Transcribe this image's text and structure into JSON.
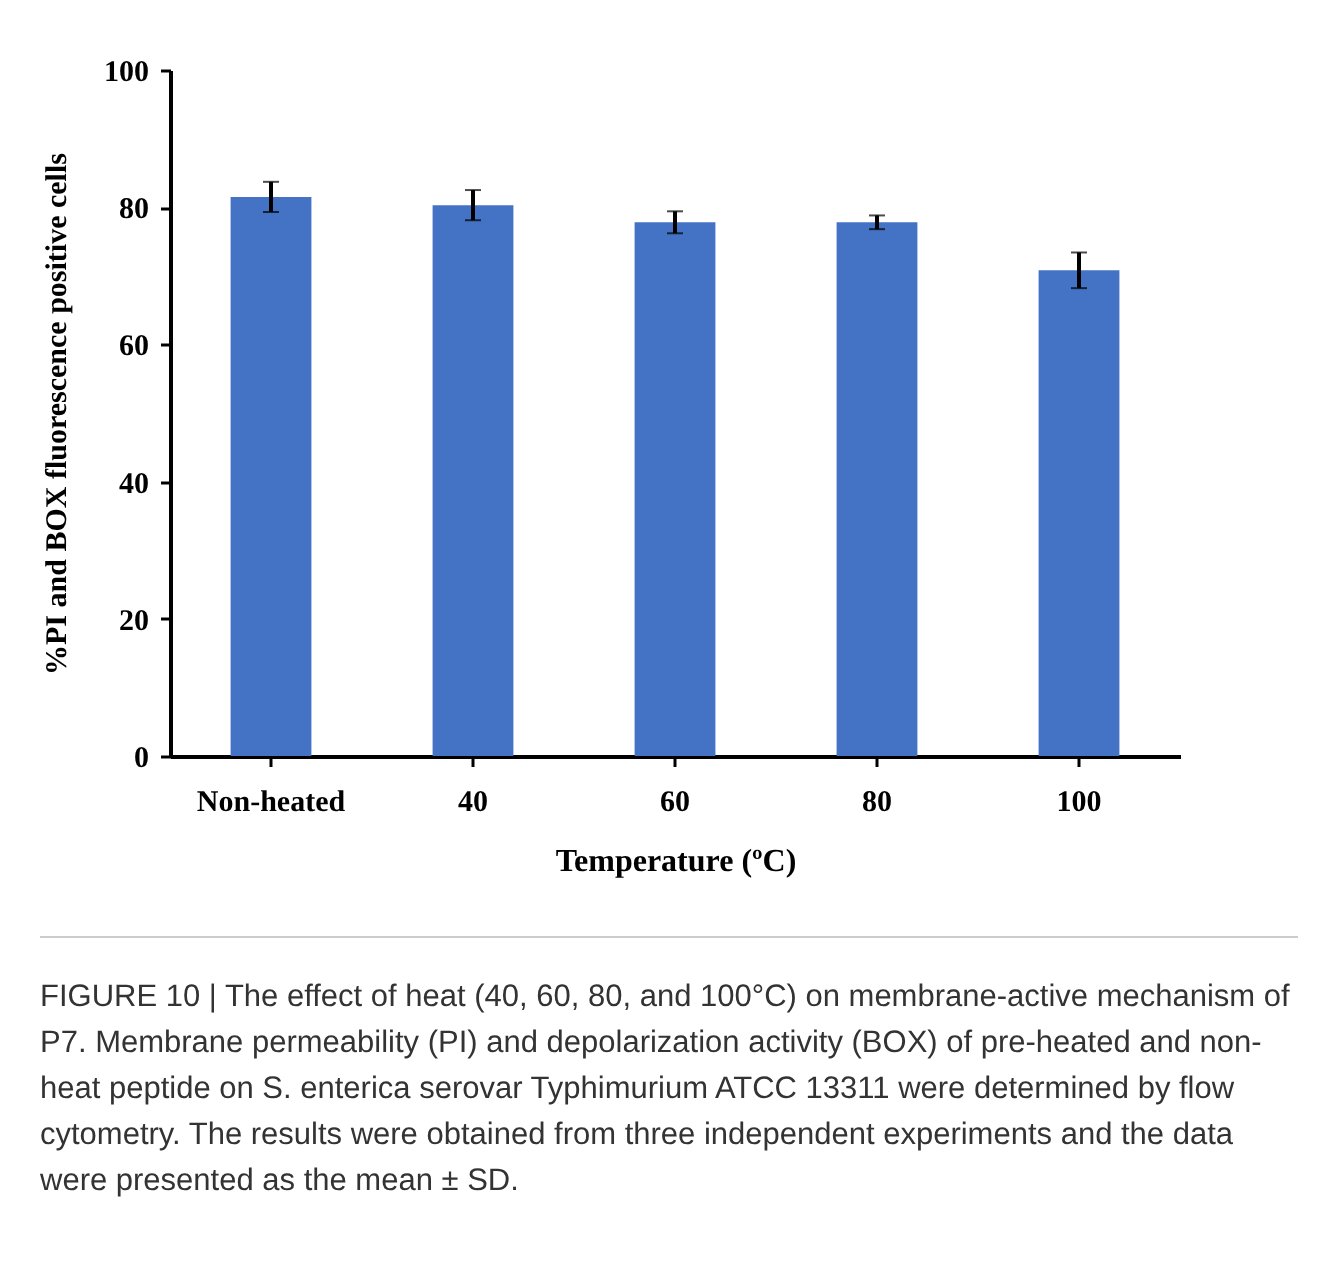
{
  "chart_data": {
    "type": "bar",
    "xlabel": "Temperature (ºC)",
    "ylabel": "%PI and BOX fluorescence positive cells",
    "categories": [
      "Non-heated",
      "40",
      "60",
      "80",
      "100"
    ],
    "values": [
      81.5,
      80.3,
      77.8,
      77.8,
      70.8
    ],
    "errors": [
      2.2,
      2.2,
      1.6,
      1.0,
      2.6
    ],
    "color": "#4472c4",
    "ylim": [
      0,
      100
    ],
    "yticks": [
      0,
      20,
      40,
      60,
      80,
      100
    ],
    "grid": false,
    "annotations": [
      "FIGURE 10 | The effect of heat (40, 60, 80, and 100°C) on membrane-active mechanism of P7. Membrane permeability (PI) and depolarization activity (BOX) of pre-heated and non-heat peptide on S. enterica serovar Typhimurium ATCC 13311 were determined by flow cytometry. The results were obtained from three independent experiments and the data were presented as the mean ± SD."
    ]
  }
}
